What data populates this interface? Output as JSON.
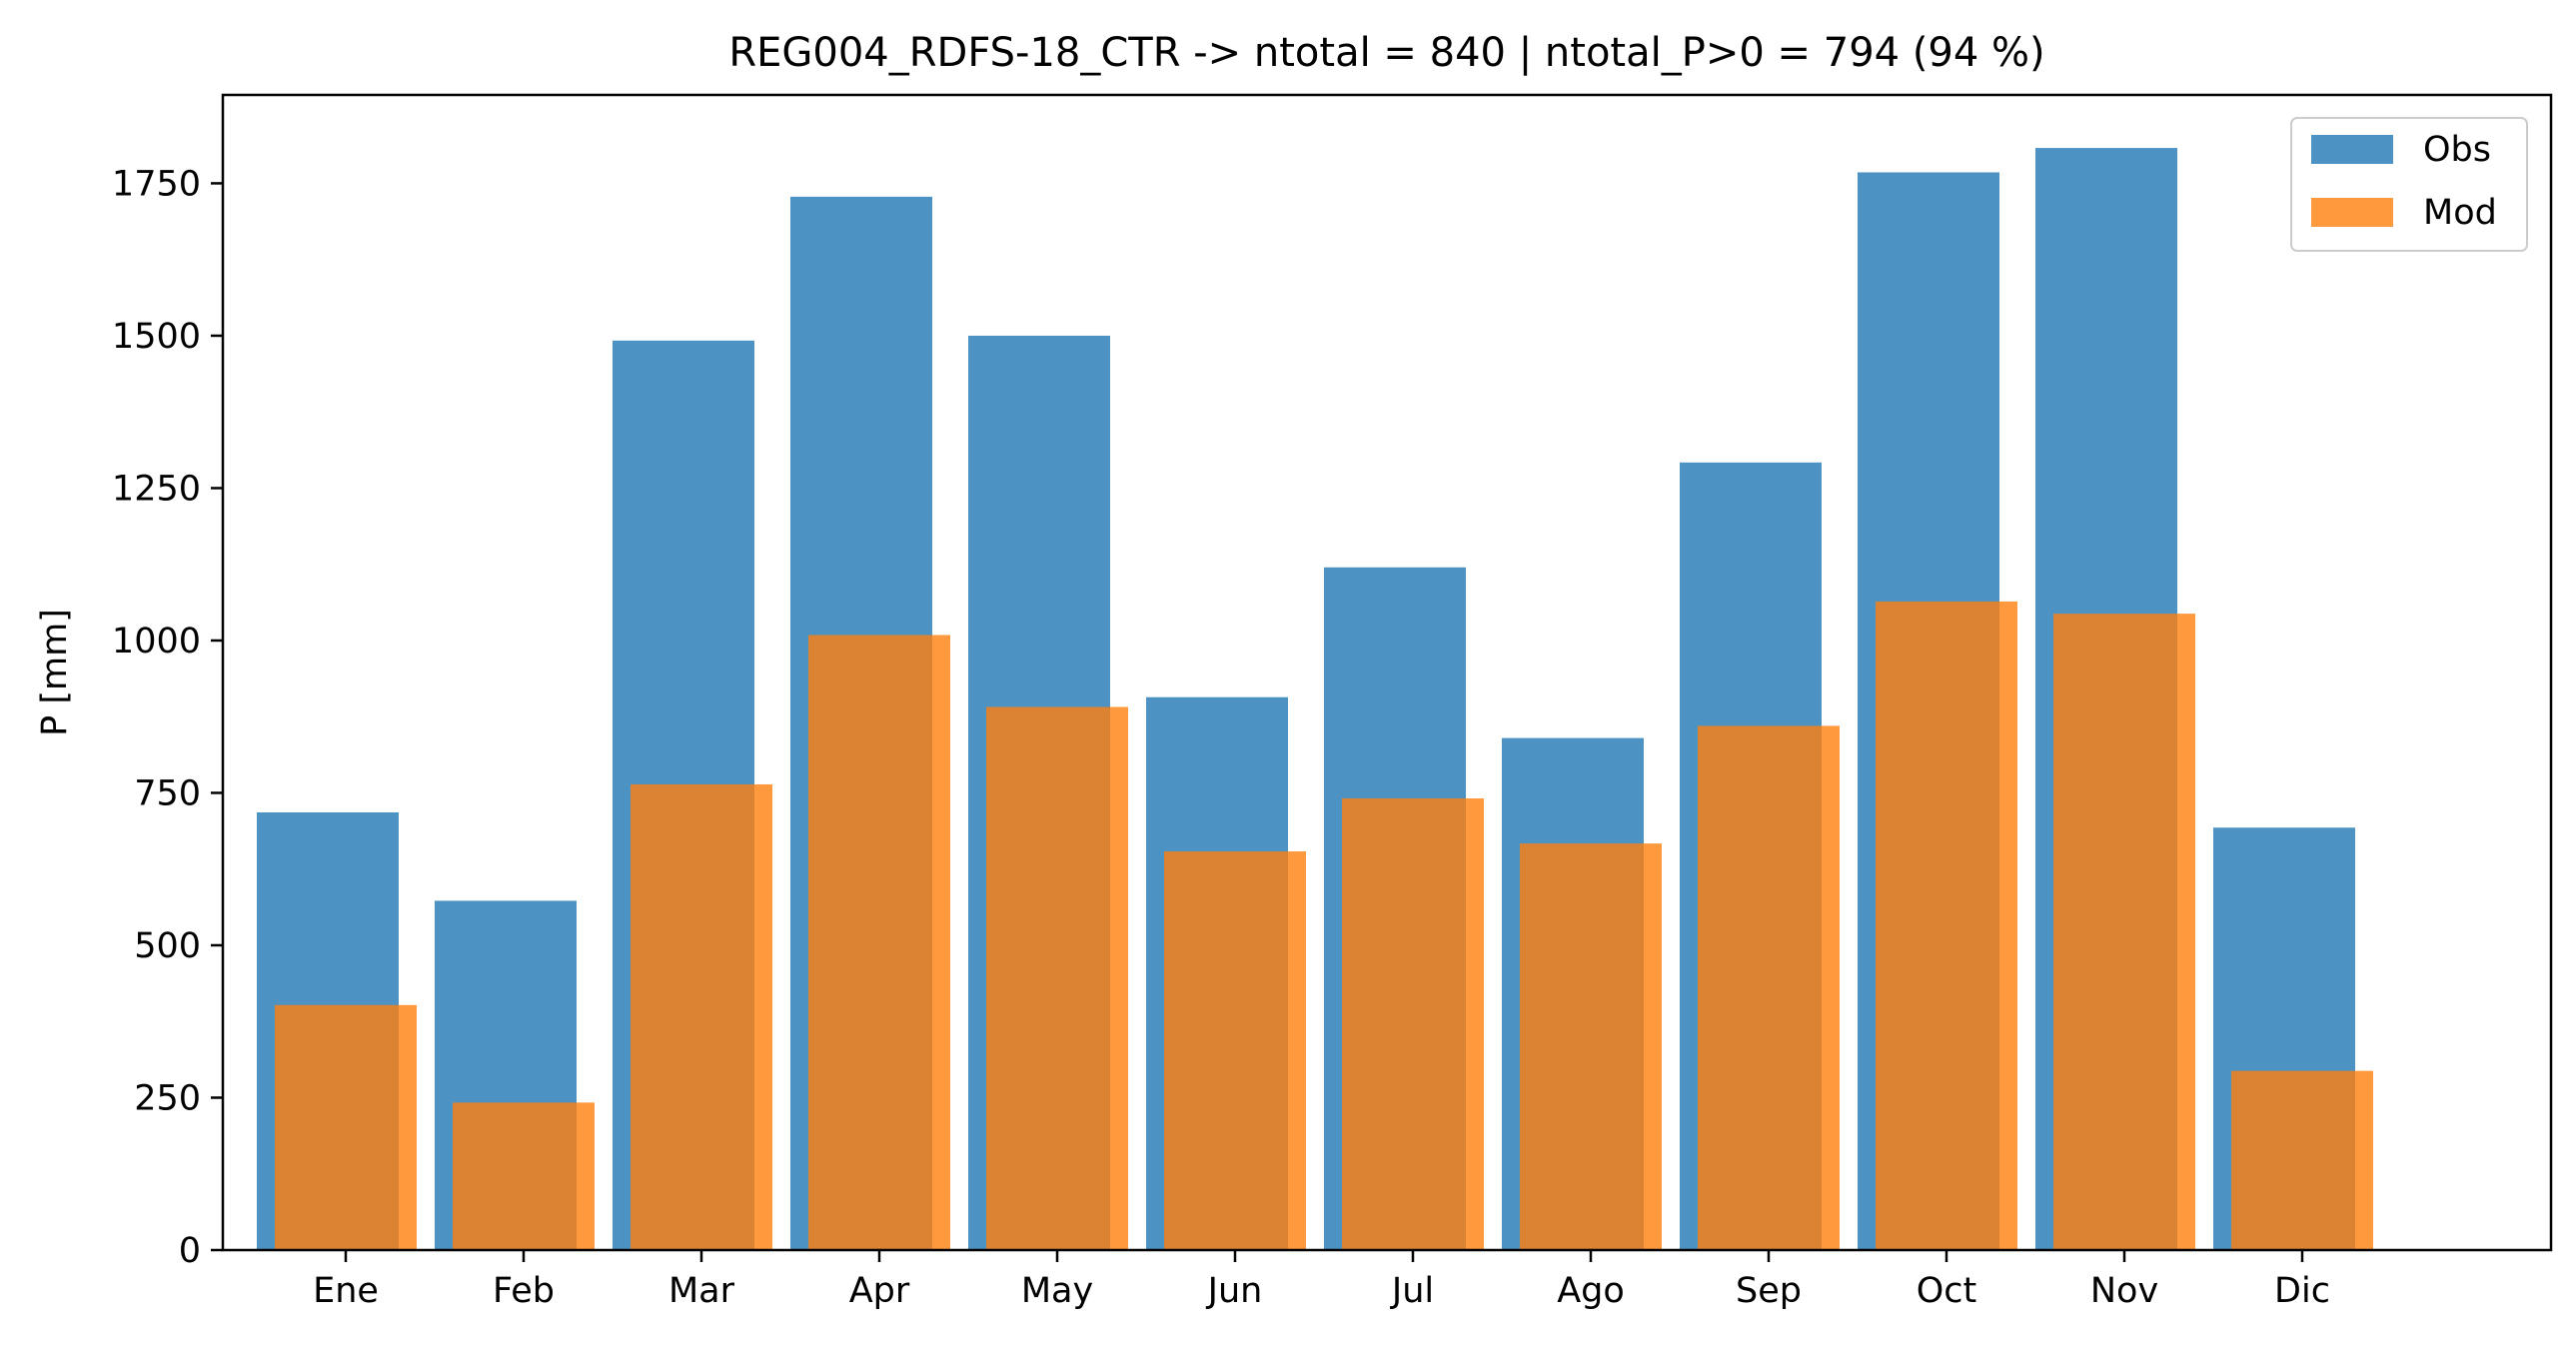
{
  "chart_data": {
    "type": "bar",
    "title": "REG004_RDFS-18_CTR -> ntotal = 840 | ntotal_P>0 = 794 (94 %)",
    "xlabel": "",
    "ylabel": "P [mm]",
    "categories": [
      "Ene",
      "Feb",
      "Mar",
      "Apr",
      "May",
      "Jun",
      "Jul",
      "Ago",
      "Sep",
      "Oct",
      "Nov",
      "Dic"
    ],
    "series": [
      {
        "name": "Obs",
        "color": "#1f77b4",
        "opacity": 0.8,
        "values": [
          718,
          573,
          1492,
          1728,
          1500,
          907,
          1120,
          840,
          1292,
          1768,
          1808,
          693
        ]
      },
      {
        "name": "Mod",
        "color": "#ff7f0e",
        "opacity": 0.8,
        "values": [
          402,
          242,
          764,
          1009,
          891,
          654,
          741,
          667,
          860,
          1064,
          1044,
          294
        ]
      }
    ],
    "ylim": [
      0,
      1895
    ],
    "yticks": [
      0,
      250,
      500,
      750,
      1000,
      1250,
      1500,
      1750
    ],
    "grid": false,
    "legend_position": "top-right"
  }
}
